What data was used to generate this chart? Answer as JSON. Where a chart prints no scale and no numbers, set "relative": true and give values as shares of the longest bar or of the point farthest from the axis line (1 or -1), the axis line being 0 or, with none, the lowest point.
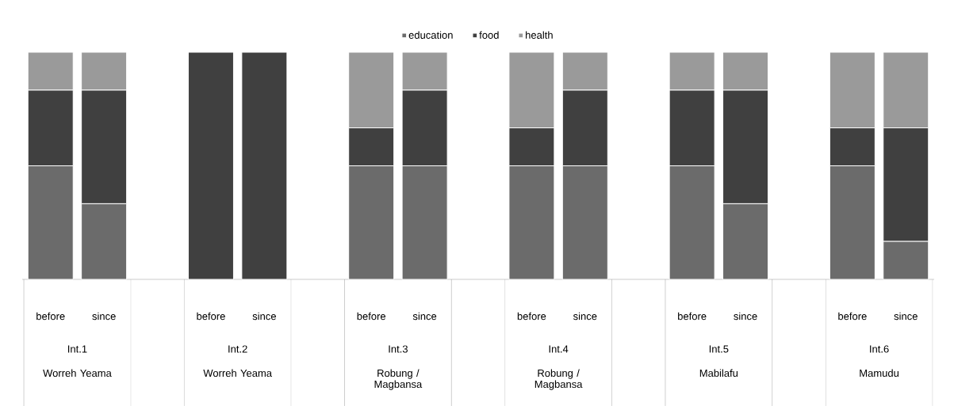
{
  "chart_data": {
    "type": "bar",
    "stacked": true,
    "relative": true,
    "legend": "top",
    "categories": [
      "before",
      "since",
      null,
      "before",
      "since",
      null,
      "before",
      "since",
      null,
      "before",
      "since",
      null,
      "before",
      "since",
      null,
      "before",
      "since"
    ],
    "series": [
      {
        "name": "education",
        "color": "#6b6b6b",
        "values": [
          0.5,
          0.333,
          null,
          0,
          0,
          null,
          0.5,
          0.5,
          null,
          0.5,
          0.5,
          null,
          0.5,
          0.333,
          null,
          0.5,
          0.167
        ]
      },
      {
        "name": "food",
        "color": "#404040",
        "values": [
          0.333,
          0.5,
          null,
          1,
          1,
          null,
          0.167,
          0.333,
          null,
          0.167,
          0.333,
          null,
          0.333,
          0.5,
          null,
          0.167,
          0.5
        ]
      },
      {
        "name": "health",
        "color": "#9a9a9a",
        "values": [
          0.167,
          0.167,
          null,
          0,
          0,
          null,
          0.333,
          0.167,
          null,
          0.333,
          0.167,
          null,
          0.167,
          0.167,
          null,
          0.333,
          0.333
        ]
      }
    ],
    "annotations": [
      "Int.1",
      "Worreh Yeama",
      "Int.2",
      "Worreh Yeama",
      "Int.3",
      "Robung / Magbansa",
      "Int.4",
      "Robung / Magbansa",
      "Int.5",
      "Mabilafu",
      "Int.6",
      "Mamudu"
    ]
  }
}
